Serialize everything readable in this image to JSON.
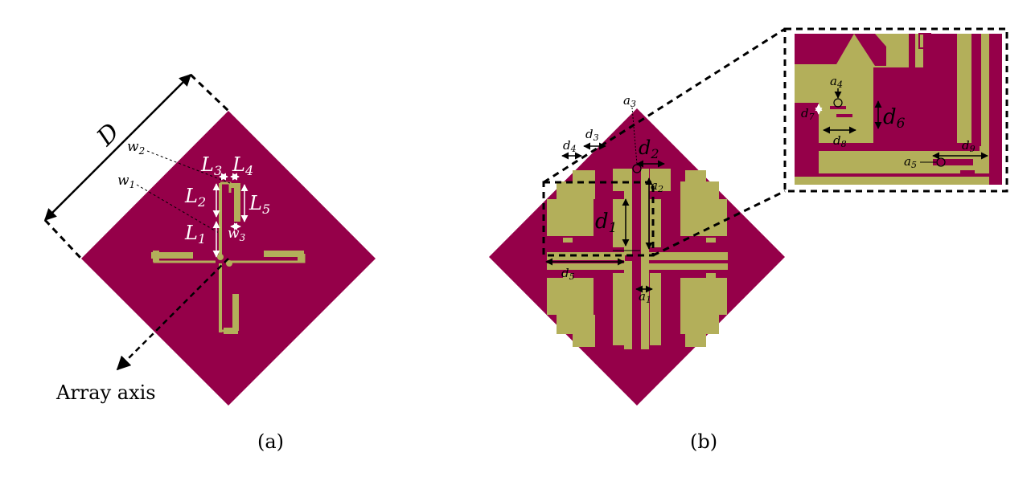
{
  "colors": {
    "substrate": "#950049",
    "copper": "#b3af5a",
    "background": "#ffffff",
    "annotation_dark": "#000000",
    "annotation_light": "#ffffff"
  },
  "panel_a": {
    "caption": "(a)",
    "dimension_D": "D",
    "array_axis_label": "Array axis",
    "labels": {
      "w2": "w",
      "w2_sub": "2",
      "w1": "w",
      "w1_sub": "1",
      "L3": "L",
      "L3_sub": "3",
      "L4": "L",
      "L4_sub": "4",
      "L2": "L",
      "L2_sub": "2",
      "L5": "L",
      "L5_sub": "5",
      "L1": "L",
      "L1_sub": "1",
      "w3": "w",
      "w3_sub": "3"
    }
  },
  "panel_b": {
    "caption": "(b)",
    "labels": {
      "a3": "a",
      "a3_sub": "3",
      "d4": "d",
      "d4_sub": "4",
      "d3": "d",
      "d3_sub": "3",
      "d2": "d",
      "d2_sub": "2",
      "a2": "a",
      "a2_sub": "2",
      "d1": "d",
      "d1_sub": "1",
      "d5": "d",
      "d5_sub": "5",
      "a1": "a",
      "a1_sub": "1"
    },
    "inset": {
      "a4": "a",
      "a4_sub": "4",
      "d7": "d",
      "d7_sub": "7",
      "d6": "d",
      "d6_sub": "6",
      "d8": "d",
      "d8_sub": "8",
      "d9": "d",
      "d9_sub": "9",
      "a5": "a",
      "a5_sub": "5"
    }
  }
}
